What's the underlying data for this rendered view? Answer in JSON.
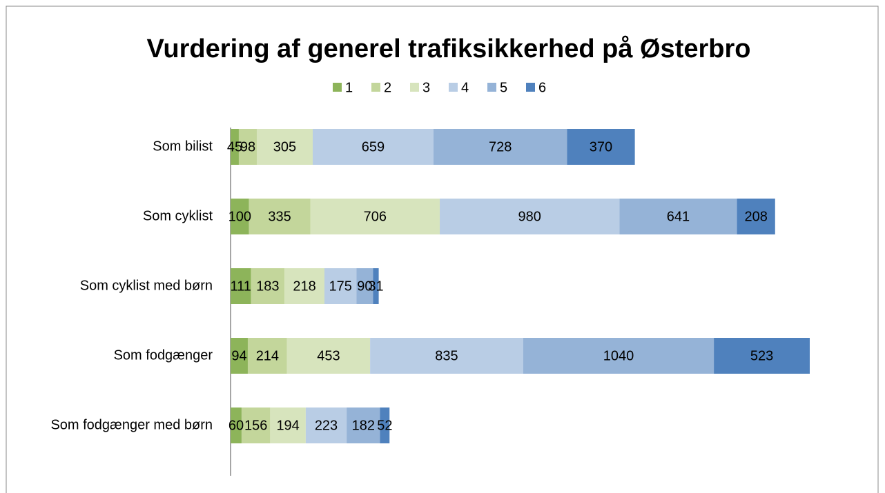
{
  "chart_data": {
    "type": "stacked-bar-horizontal",
    "title": "Vurdering af generel trafiksikkerhed på Østerbro",
    "categories": [
      "Som bilist",
      "Som cyklist",
      "Som cyklist med børn",
      "Som fodgænger",
      "Som fodgænger med børn"
    ],
    "series": [
      {
        "name": "1",
        "color": "#8db45a",
        "values": [
          45,
          100,
          111,
          94,
          60
        ]
      },
      {
        "name": "2",
        "color": "#c3d69b",
        "values": [
          98,
          335,
          183,
          214,
          156
        ]
      },
      {
        "name": "3",
        "color": "#d7e4bd",
        "values": [
          305,
          706,
          218,
          453,
          194
        ]
      },
      {
        "name": "4",
        "color": "#b9cde5",
        "values": [
          659,
          980,
          175,
          835,
          223
        ]
      },
      {
        "name": "5",
        "color": "#95b3d7",
        "values": [
          728,
          641,
          90,
          1040,
          182
        ]
      },
      {
        "name": "6",
        "color": "#4f81bd",
        "values": [
          370,
          208,
          31,
          523,
          52
        ]
      }
    ],
    "legend": "top"
  }
}
